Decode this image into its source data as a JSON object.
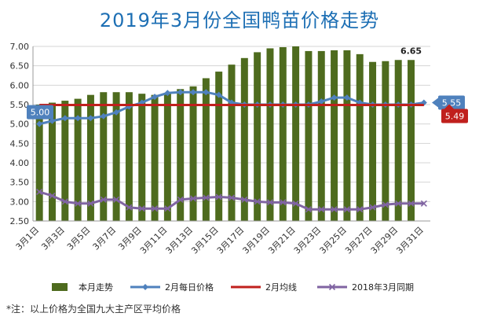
{
  "chart_data": {
    "type": "bar+line",
    "title": "2019年3月份全国鸭苗价格走势",
    "categories": [
      "3月1日",
      "3月2日",
      "3月3日",
      "3月4日",
      "3月5日",
      "3月6日",
      "3月7日",
      "3月8日",
      "3月9日",
      "3月10日",
      "3月11日",
      "3月12日",
      "3月13日",
      "3月14日",
      "3月15日",
      "3月16日",
      "3月17日",
      "3月18日",
      "3月19日",
      "3月20日",
      "3月21日",
      "3月22日",
      "3月23日",
      "3月24日",
      "3月25日",
      "3月26日",
      "3月27日",
      "3月28日",
      "3月29日",
      "3月30日",
      "3月31日"
    ],
    "tick_labels": [
      "3月1日",
      "3月3日",
      "3月5日",
      "3月7日",
      "3月9日",
      "3月11日",
      "3月13日",
      "3月15日",
      "3月17日",
      "3月19日",
      "3月21日",
      "3月23日",
      "3月25日",
      "3月27日",
      "3月29日",
      "3月31日"
    ],
    "ylim": [
      2.5,
      7.0
    ],
    "yticks": [
      "2.50",
      "3.00",
      "3.50",
      "4.00",
      "4.50",
      "5.00",
      "5.50",
      "6.00",
      "6.50",
      "7.00"
    ],
    "series": [
      {
        "name": "本月走势",
        "kind": "bar",
        "color": "#4e6b1e",
        "values": [
          5.5,
          5.55,
          5.6,
          5.65,
          5.75,
          5.82,
          5.82,
          5.82,
          5.78,
          5.75,
          5.8,
          5.9,
          5.97,
          6.18,
          6.35,
          6.53,
          6.7,
          6.85,
          6.95,
          6.98,
          7.0,
          6.88,
          6.88,
          6.9,
          6.9,
          6.8,
          6.6,
          6.62,
          6.65,
          6.65,
          null
        ]
      },
      {
        "name": "2月每日价格",
        "kind": "line",
        "color": "#4f81bd",
        "values": [
          5.0,
          5.08,
          5.15,
          5.15,
          5.15,
          5.2,
          5.3,
          5.45,
          5.55,
          5.7,
          5.8,
          5.82,
          5.82,
          5.82,
          5.75,
          5.55,
          5.5,
          5.5,
          5.5,
          5.5,
          5.5,
          5.5,
          5.58,
          5.68,
          5.68,
          5.55,
          5.5,
          5.5,
          5.5,
          5.5,
          5.55
        ]
      },
      {
        "name": "2月均线",
        "kind": "line",
        "color": "#c0201d",
        "values": [
          5.49,
          5.49,
          5.49,
          5.49,
          5.49,
          5.49,
          5.49,
          5.49,
          5.49,
          5.49,
          5.49,
          5.49,
          5.49,
          5.49,
          5.49,
          5.49,
          5.49,
          5.49,
          5.49,
          5.49,
          5.49,
          5.49,
          5.49,
          5.49,
          5.49,
          5.49,
          5.49,
          5.49,
          5.49,
          5.49,
          5.49
        ]
      },
      {
        "name": "2018年3月同期",
        "kind": "line",
        "color": "#8064a2",
        "values": [
          3.25,
          3.15,
          3.0,
          2.95,
          2.95,
          3.05,
          3.05,
          2.85,
          2.82,
          2.82,
          2.82,
          3.05,
          3.08,
          3.1,
          3.12,
          3.1,
          3.05,
          3.0,
          2.98,
          2.98,
          2.95,
          2.8,
          2.8,
          2.8,
          2.8,
          2.8,
          2.85,
          2.92,
          2.95,
          2.95,
          2.95
        ]
      }
    ],
    "annotations": {
      "bar_last_label": "6.65",
      "blue_start_label": "5.00",
      "blue_end_label": "5.55",
      "red_end_label": "5.49"
    },
    "footnote": "*注：以上价格为全国九大主产区平均价格",
    "grid": true,
    "legend_position": "bottom",
    "colors": {
      "bar": "#4e6b1e",
      "blue": "#4f81bd",
      "red": "#c0201d",
      "purple": "#8064a2",
      "title": "#1d6fb4"
    }
  }
}
